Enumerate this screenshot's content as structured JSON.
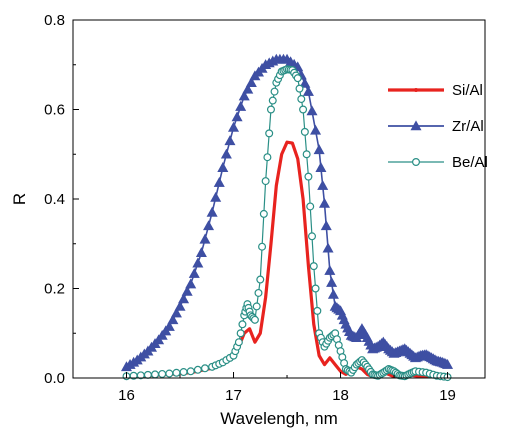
{
  "chart_data": {
    "type": "line",
    "xlabel": "Wavelengh, nm",
    "ylabel": "R",
    "xlim": [
      15.5,
      19.35
    ],
    "ylim": [
      0.0,
      0.8
    ],
    "x_ticks": [
      "16",
      "17",
      "18",
      "19"
    ],
    "y_ticks": [
      "0.0",
      "0.2",
      "0.4",
      "0.6",
      "0.8"
    ],
    "legend_position": "right",
    "series": [
      {
        "name": "Si/Al",
        "color": "#e8231f",
        "marker": "none",
        "x": [
          16.0,
          16.2,
          16.4,
          16.6,
          16.8,
          16.9,
          17.0,
          17.05,
          17.1,
          17.15,
          17.2,
          17.25,
          17.3,
          17.35,
          17.4,
          17.45,
          17.5,
          17.55,
          17.6,
          17.65,
          17.7,
          17.75,
          17.8,
          17.85,
          17.9,
          17.95,
          18.0,
          18.05,
          18.1,
          18.15,
          18.2,
          18.25,
          18.3,
          18.35,
          18.4,
          18.45,
          18.5,
          18.55,
          18.6,
          18.7,
          18.8,
          18.9,
          19.0
        ],
        "y": [
          0.003,
          0.005,
          0.008,
          0.012,
          0.022,
          0.032,
          0.045,
          0.07,
          0.1,
          0.11,
          0.08,
          0.1,
          0.18,
          0.3,
          0.43,
          0.5,
          0.527,
          0.525,
          0.49,
          0.4,
          0.25,
          0.12,
          0.05,
          0.03,
          0.045,
          0.03,
          0.015,
          0.008,
          0.015,
          0.025,
          0.02,
          0.008,
          0.003,
          0.008,
          0.013,
          0.008,
          0.003,
          0.005,
          0.008,
          0.005,
          0.003,
          0.003,
          0.002
        ]
      },
      {
        "name": "Zr/Al",
        "color": "#3e4fa3",
        "marker": "triangle",
        "x": [
          16.0,
          16.1,
          16.2,
          16.3,
          16.4,
          16.5,
          16.6,
          16.7,
          16.8,
          16.9,
          17.0,
          17.1,
          17.2,
          17.3,
          17.4,
          17.5,
          17.6,
          17.7,
          17.8,
          17.85,
          17.9,
          17.95,
          18.0,
          18.05,
          18.1,
          18.15,
          18.2,
          18.25,
          18.3,
          18.35,
          18.4,
          18.45,
          18.5,
          18.55,
          18.6,
          18.65,
          18.7,
          18.75,
          18.8,
          18.85,
          18.9,
          18.95,
          19.0
        ],
        "y": [
          0.025,
          0.04,
          0.06,
          0.085,
          0.115,
          0.16,
          0.21,
          0.28,
          0.37,
          0.47,
          0.56,
          0.63,
          0.675,
          0.7,
          0.712,
          0.712,
          0.695,
          0.64,
          0.51,
          0.39,
          0.24,
          0.16,
          0.15,
          0.12,
          0.095,
          0.09,
          0.11,
          0.09,
          0.065,
          0.07,
          0.08,
          0.065,
          0.055,
          0.06,
          0.065,
          0.055,
          0.045,
          0.05,
          0.052,
          0.045,
          0.038,
          0.035,
          0.03
        ]
      },
      {
        "name": "Be/Al",
        "color": "#2a8f86",
        "marker": "circle",
        "x": [
          16.0,
          16.2,
          16.4,
          16.6,
          16.8,
          16.9,
          17.0,
          17.05,
          17.1,
          17.13,
          17.16,
          17.2,
          17.25,
          17.3,
          17.35,
          17.4,
          17.45,
          17.5,
          17.55,
          17.6,
          17.65,
          17.7,
          17.75,
          17.8,
          17.85,
          17.9,
          17.95,
          18.0,
          18.05,
          18.1,
          18.15,
          18.2,
          18.25,
          18.3,
          18.35,
          18.4,
          18.45,
          18.5,
          18.55,
          18.6,
          18.65,
          18.7,
          18.8,
          18.9,
          19.0
        ],
        "y": [
          0.004,
          0.007,
          0.01,
          0.015,
          0.025,
          0.035,
          0.05,
          0.08,
          0.14,
          0.165,
          0.14,
          0.13,
          0.22,
          0.44,
          0.6,
          0.66,
          0.685,
          0.69,
          0.688,
          0.67,
          0.6,
          0.45,
          0.25,
          0.1,
          0.07,
          0.09,
          0.1,
          0.06,
          0.02,
          0.012,
          0.03,
          0.04,
          0.025,
          0.008,
          0.005,
          0.012,
          0.02,
          0.015,
          0.006,
          0.004,
          0.01,
          0.015,
          0.012,
          0.005,
          0.002
        ]
      }
    ]
  }
}
